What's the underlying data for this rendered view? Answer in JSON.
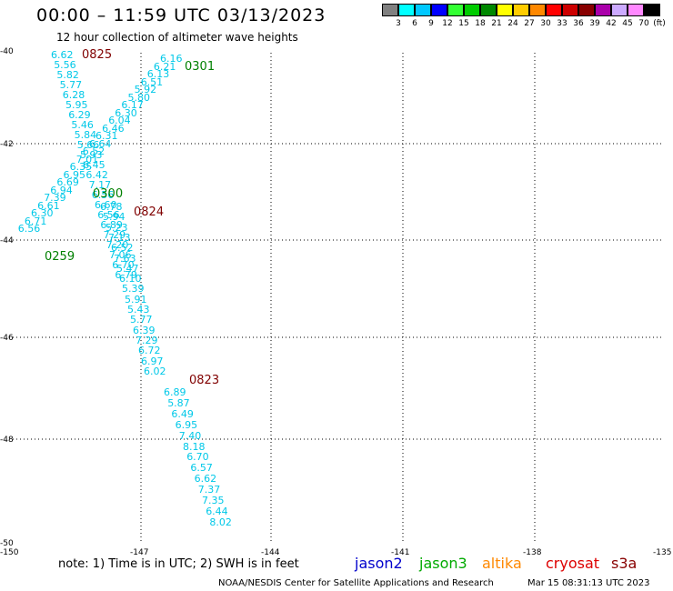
{
  "title": "00:00 – 11:59 UTC 03/13/2023",
  "subtitle": "12 hour collection of altimeter wave heights",
  "legend": {
    "unit": "(ft)",
    "colors": [
      "#808080",
      "#00ffff",
      "#00c8ff",
      "#0000ff",
      "#33ff33",
      "#00cc00",
      "#008800",
      "#ffff00",
      "#ffcc00",
      "#ff8800",
      "#ff0000",
      "#cc0000",
      "#880000",
      "#aa00aa",
      "#ccaaff",
      "#ff88ff",
      "#000000"
    ],
    "labels": [
      "3",
      "6",
      "9",
      "12",
      "15",
      "18",
      "21",
      "24",
      "27",
      "30",
      "33",
      "36",
      "39",
      "42",
      "45",
      "70"
    ]
  },
  "map": {
    "lat_labels": [
      "-40",
      "-42",
      "-44",
      "-46",
      "-48",
      "-50"
    ],
    "lon_labels": [
      "-150",
      "-147",
      "-144",
      "-141",
      "-138",
      "-135"
    ],
    "value_color": "#00c8e8"
  },
  "tracks": [
    {
      "satellite": "jason2",
      "color": "#800000",
      "time": "0825",
      "values": [
        "6.62",
        "5.56",
        "5.82",
        "5.77",
        "6.28",
        "5.95",
        "6.29",
        "5.46",
        "5.84",
        "5.66",
        "5.93",
        "6.45",
        "6.42",
        "7.17",
        "6.56",
        "6.60",
        "6.56",
        "6.89",
        "7.29",
        "7.20",
        "7.06",
        "6.70",
        "6.79"
      ]
    },
    {
      "satellite": "jason3",
      "color": "#008000",
      "time": "0301",
      "values": [
        "6.16",
        "6.21",
        "6.13",
        "6.51",
        "5.92",
        "5.80",
        "6.17",
        "6.30",
        "6.04",
        "6.46",
        "6.31",
        "6.64",
        "6.52",
        "7.01",
        "6.35",
        "6.95",
        "6.69",
        "6.94",
        "7.39",
        "6.61",
        "6.30",
        "6.71",
        "6.56"
      ]
    },
    {
      "satellite": "jason3",
      "color": "#008000",
      "time": "0300",
      "values": []
    },
    {
      "satellite": "jason2",
      "color": "#800000",
      "time": "0824",
      "values": [
        "6.78",
        "5.94",
        "5.23",
        "7.13",
        "6.52",
        "7.63",
        "5.47",
        "6.10",
        "5.39",
        "5.91",
        "5.43",
        "5.77",
        "6.39",
        "7.29",
        "6.72",
        "6.97",
        "6.02"
      ]
    },
    {
      "satellite": "jason3",
      "color": "#008000",
      "time": "0259",
      "values": []
    },
    {
      "satellite": "jason2",
      "color": "#800000",
      "time": "0823",
      "values": [
        "6.89",
        "5.87",
        "6.49",
        "6.95",
        "7.40",
        "8.18",
        "6.70",
        "6.57",
        "6.62",
        "7.37",
        "7.35",
        "6.44",
        "8.02"
      ]
    }
  ],
  "note": "note:  1) Time is in UTC; 2) SWH is in feet",
  "satellites": [
    {
      "name": "jason2",
      "color": "#0000cc"
    },
    {
      "name": "jason3",
      "color": "#00aa00"
    },
    {
      "name": "altika",
      "color": "#ff8800"
    },
    {
      "name": "cryosat",
      "color": "#dd0000"
    },
    {
      "name": "s3a",
      "color": "#880000"
    }
  ],
  "footer": {
    "source": "NOAA/NESDIS Center for Satellite Applications and Research",
    "timestamp": "Mar 15 08:31:13 UTC 2023"
  }
}
